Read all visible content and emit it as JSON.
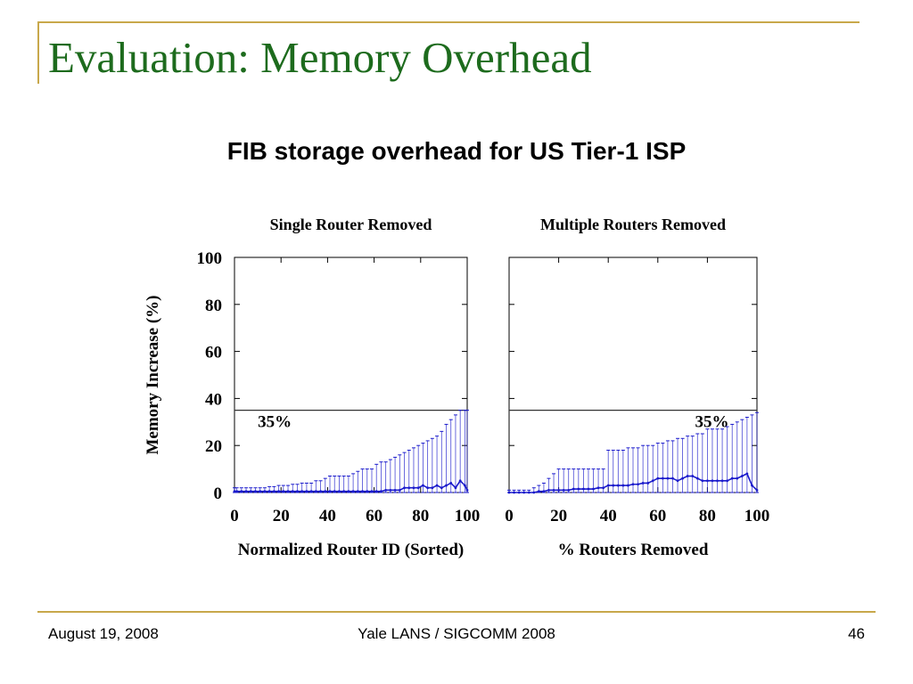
{
  "slide": {
    "title": "Evaluation: Memory Overhead",
    "subtitle": "FIB storage overhead for US Tier-1 ISP"
  },
  "footer": {
    "date": "August 19, 2008",
    "venue": "Yale LANS / SIGCOMM 2008",
    "page": "46"
  },
  "colors": {
    "accent_line": "#c8a84b",
    "title_text": "#1d6b1d",
    "series": "#1a1acc"
  },
  "chart_data": [
    {
      "type": "line",
      "title": "Single Router Removed",
      "xlabel": "Normalized Router ID (Sorted)",
      "ylabel": "Memory Increase (%)",
      "xlim": [
        0,
        100
      ],
      "ylim": [
        0,
        100
      ],
      "xticks": [
        0,
        20,
        40,
        60,
        80,
        100
      ],
      "yticks": [
        0,
        20,
        40,
        60,
        80,
        100
      ],
      "reference_line": {
        "y": 35,
        "label": "35%"
      },
      "series": [
        {
          "x": [
            0,
            1,
            3,
            5,
            7,
            9,
            11,
            13,
            15,
            17,
            19,
            21,
            23,
            25,
            27,
            29,
            31,
            33,
            35,
            37,
            39,
            41,
            43,
            45,
            47,
            49,
            51,
            53,
            55,
            57,
            59,
            61,
            63,
            65,
            67,
            69,
            71,
            73,
            75,
            77,
            79,
            81,
            83,
            85,
            87,
            89,
            91,
            93,
            95,
            97,
            99,
            100
          ],
          "max": [
            2,
            2,
            2,
            2,
            2,
            2,
            2,
            2,
            2.5,
            2.5,
            3,
            3,
            3,
            3.5,
            3.5,
            4,
            4,
            4,
            5,
            5,
            6,
            7,
            7,
            7,
            7,
            7,
            8,
            9,
            10,
            10,
            10,
            12,
            13,
            13,
            14,
            15,
            16,
            17,
            18,
            19,
            20,
            21,
            22,
            23,
            24,
            26,
            29,
            31,
            33,
            35,
            35,
            35
          ],
          "avg": [
            0.5,
            0.5,
            0.5,
            0.5,
            0.5,
            0.5,
            0.5,
            0.5,
            0.5,
            0.5,
            0.5,
            0.5,
            0.5,
            0.5,
            0.5,
            0.5,
            0.5,
            0.5,
            0.5,
            0.5,
            0.5,
            0.5,
            0.5,
            0.5,
            0.5,
            0.5,
            0.5,
            0.5,
            0.5,
            0.5,
            0.5,
            0.5,
            0.5,
            1,
            1,
            1,
            1,
            2,
            2,
            2,
            2,
            3,
            2,
            2,
            3,
            2,
            3,
            4,
            2,
            5,
            3,
            1
          ],
          "min": [
            0,
            0,
            0,
            0,
            0,
            0,
            0,
            0,
            0,
            0,
            0,
            0,
            0,
            0,
            0,
            0,
            0,
            0,
            0,
            0,
            0,
            0,
            0,
            0,
            0,
            0,
            0,
            0,
            0,
            0,
            0,
            0,
            0,
            0,
            0,
            0,
            0,
            0,
            0,
            0,
            0,
            0,
            0,
            0,
            0,
            0,
            0,
            0,
            0,
            0,
            0,
            0
          ]
        }
      ]
    },
    {
      "type": "line",
      "title": "Multiple Routers Removed",
      "xlabel": "% Routers Removed",
      "ylabel": "",
      "xlim": [
        0,
        100
      ],
      "ylim": [
        0,
        100
      ],
      "xticks": [
        0,
        20,
        40,
        60,
        80,
        100
      ],
      "yticks": [
        0,
        20,
        40,
        60,
        80,
        100
      ],
      "reference_line": {
        "y": 35,
        "label": "35%"
      },
      "series": [
        {
          "x": [
            0,
            2,
            4,
            6,
            8,
            10,
            12,
            14,
            16,
            18,
            20,
            22,
            24,
            26,
            28,
            30,
            32,
            34,
            36,
            38,
            40,
            42,
            44,
            46,
            48,
            50,
            52,
            54,
            56,
            58,
            60,
            62,
            64,
            66,
            68,
            70,
            72,
            74,
            76,
            78,
            80,
            82,
            84,
            86,
            88,
            90,
            92,
            94,
            96,
            98,
            100
          ],
          "max": [
            1,
            1,
            1,
            1,
            1,
            2,
            3,
            4,
            6,
            8,
            10,
            10,
            10,
            10,
            10,
            10,
            10,
            10,
            10,
            10,
            18,
            18,
            18,
            18,
            19,
            19,
            19,
            20,
            20,
            20,
            21,
            21,
            22,
            22,
            23,
            23,
            24,
            24,
            25,
            25,
            27,
            27,
            27,
            27,
            28,
            29,
            30,
            31,
            32,
            33,
            34
          ],
          "avg": [
            0,
            0,
            0,
            0,
            0,
            0,
            0.5,
            0.5,
            1,
            1,
            1,
            1,
            1,
            1.5,
            1.5,
            1.5,
            1.5,
            1.5,
            2,
            2,
            3,
            3,
            3,
            3,
            3,
            3.5,
            3.5,
            4,
            4,
            5,
            6,
            6,
            6,
            6,
            5,
            6,
            7,
            7,
            6,
            5,
            5,
            5,
            5,
            5,
            5,
            6,
            6,
            7,
            8,
            3,
            1
          ],
          "min": [
            0,
            0,
            0,
            0,
            0,
            0,
            0,
            0,
            0,
            0,
            0,
            0,
            0,
            0,
            0,
            0,
            0,
            0,
            0,
            0,
            0,
            0,
            0,
            0,
            0,
            0,
            0,
            0,
            0,
            0,
            0,
            0,
            0,
            0,
            0,
            0,
            0,
            0,
            0,
            0,
            0,
            0,
            0,
            0,
            0,
            0,
            0,
            0,
            0,
            0,
            0
          ]
        }
      ]
    }
  ]
}
